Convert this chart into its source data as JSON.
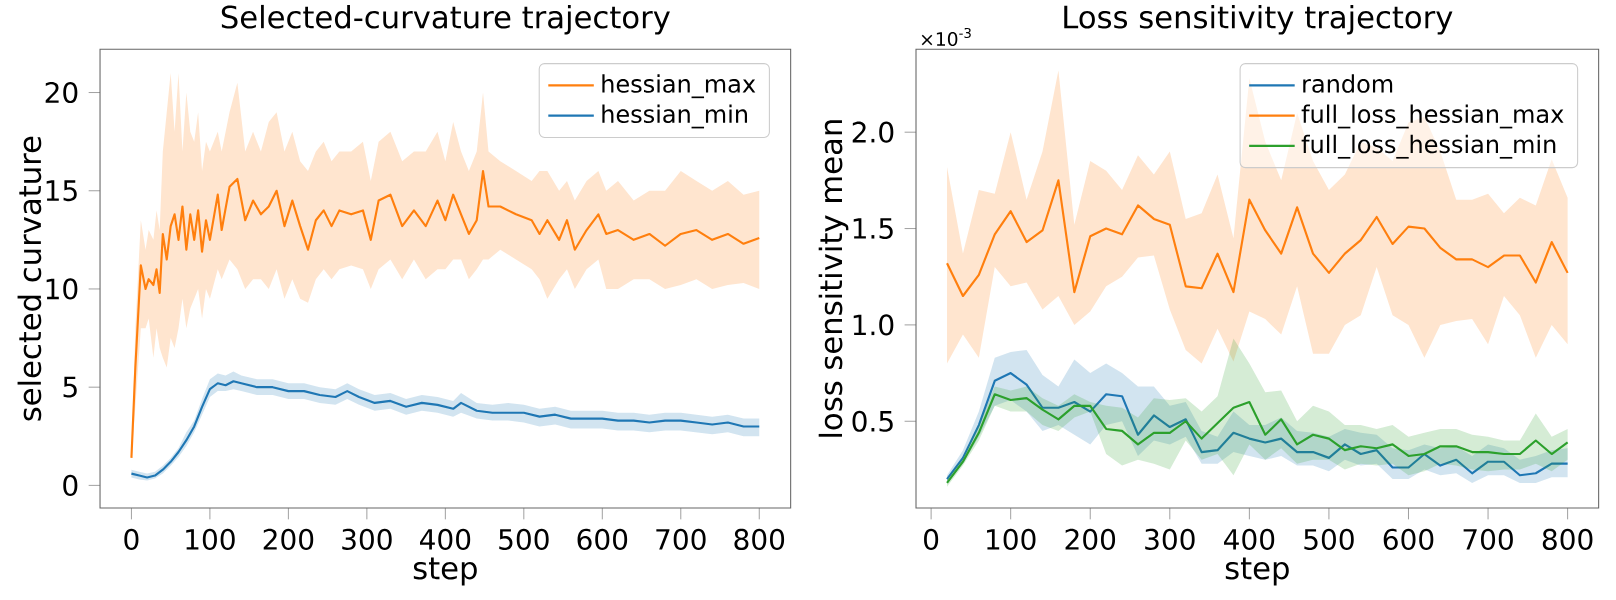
{
  "chart_data": [
    {
      "type": "line",
      "title": "Selected-curvature trajectory",
      "xlabel": "step",
      "ylabel": "selected curvature",
      "xlim": [
        -40,
        840
      ],
      "ylim": [
        -1.15,
        22.2
      ],
      "xticks": [
        0,
        100,
        200,
        300,
        400,
        500,
        600,
        700,
        800
      ],
      "yticks": [
        0,
        5,
        10,
        15,
        20
      ],
      "legend": "top right",
      "grid": false,
      "marker": "none",
      "line_style": "solid",
      "series": [
        {
          "name": "hessian_max",
          "color": "#ff7f0e",
          "x": [
            0,
            5,
            12,
            18,
            22,
            28,
            32,
            36,
            40,
            45,
            50,
            55,
            60,
            65,
            70,
            75,
            80,
            85,
            90,
            95,
            100,
            110,
            115,
            125,
            135,
            145,
            155,
            165,
            175,
            185,
            195,
            205,
            215,
            225,
            235,
            245,
            255,
            265,
            280,
            295,
            305,
            315,
            330,
            345,
            360,
            375,
            390,
            400,
            410,
            420,
            430,
            440,
            448,
            455,
            470,
            490,
            510,
            520,
            530,
            545,
            555,
            565,
            580,
            595,
            605,
            620,
            640,
            660,
            680,
            700,
            720,
            740,
            760,
            780,
            800
          ],
          "values": [
            1.4,
            6,
            11.2,
            10,
            10.5,
            10.2,
            11,
            9.8,
            12.8,
            11.5,
            13.2,
            13.8,
            12.5,
            14.2,
            12,
            13.8,
            12.5,
            14,
            11.9,
            13.5,
            12.5,
            14.8,
            13,
            15.2,
            15.6,
            13.5,
            14.5,
            13.8,
            14.2,
            15,
            13.2,
            14.5,
            13.2,
            12,
            13.5,
            14,
            13.2,
            14,
            13.8,
            14,
            12.5,
            14.5,
            14.8,
            13.2,
            14,
            13.2,
            14.5,
            13.5,
            14.8,
            13.8,
            12.8,
            13.5,
            16,
            14.2,
            14.2,
            13.8,
            13.5,
            12.8,
            13.5,
            12.5,
            13.5,
            12,
            13,
            13.8,
            12.8,
            13,
            12.5,
            12.8,
            12.2,
            12.8,
            13,
            12.5,
            12.8,
            12.3,
            12.6
          ],
          "lower": [
            1.4,
            4,
            8,
            8,
            8.5,
            6.5,
            8,
            7,
            6.5,
            6,
            7.5,
            7,
            8,
            9.5,
            8,
            9,
            9.5,
            10,
            8.5,
            10,
            9.5,
            11,
            10.5,
            11.5,
            11,
            10,
            10.5,
            10.5,
            10,
            11,
            9.5,
            10.5,
            9.5,
            9.3,
            10.5,
            11,
            10.5,
            11,
            11.2,
            11,
            10,
            11,
            11.5,
            10.5,
            11.5,
            10.5,
            11,
            11,
            11.5,
            11.5,
            10.5,
            11,
            11.5,
            11.5,
            12,
            11.5,
            11,
            10.5,
            9.5,
            10.5,
            11,
            10,
            11,
            11.5,
            10,
            10,
            10.5,
            10.5,
            10,
            10.2,
            10.5,
            10,
            10.2,
            10.3,
            10
          ],
          "upper": [
            1.4,
            8,
            13.5,
            12,
            13,
            12.5,
            14,
            13,
            17,
            19,
            21,
            18,
            21,
            17,
            20,
            18,
            17.5,
            19,
            16,
            17.5,
            17,
            18,
            17,
            19,
            20.5,
            17,
            18,
            17,
            18.5,
            19,
            17,
            18,
            16.5,
            16,
            17,
            17.5,
            16.5,
            17,
            17,
            17.5,
            15.5,
            17.5,
            18,
            16.5,
            17,
            17,
            18,
            16.5,
            18.5,
            17,
            16,
            17,
            20,
            17,
            16.5,
            16,
            15.5,
            16,
            16,
            15,
            15.5,
            14.5,
            15.5,
            16,
            15,
            15.5,
            14.5,
            15,
            15,
            16,
            15.5,
            15,
            15.5,
            14.8,
            15
          ]
        },
        {
          "name": "hessian_min",
          "color": "#1f77b4",
          "x": [
            0,
            10,
            20,
            30,
            40,
            50,
            60,
            70,
            80,
            90,
            100,
            110,
            120,
            130,
            140,
            160,
            180,
            200,
            220,
            240,
            260,
            275,
            290,
            310,
            330,
            350,
            370,
            390,
            410,
            420,
            440,
            460,
            480,
            500,
            520,
            540,
            560,
            580,
            600,
            620,
            640,
            660,
            680,
            700,
            720,
            740,
            760,
            780,
            800
          ],
          "values": [
            0.6,
            0.5,
            0.4,
            0.5,
            0.8,
            1.2,
            1.7,
            2.3,
            3.0,
            4.0,
            4.9,
            5.2,
            5.1,
            5.3,
            5.2,
            5.0,
            5.0,
            4.8,
            4.8,
            4.6,
            4.5,
            4.8,
            4.5,
            4.2,
            4.3,
            4.0,
            4.2,
            4.1,
            3.9,
            4.2,
            3.8,
            3.7,
            3.7,
            3.7,
            3.5,
            3.6,
            3.4,
            3.4,
            3.4,
            3.3,
            3.3,
            3.2,
            3.3,
            3.3,
            3.2,
            3.1,
            3.2,
            3.0,
            3.0
          ],
          "lower": [
            0.4,
            0.3,
            0.25,
            0.35,
            0.6,
            1.0,
            1.45,
            2.0,
            2.7,
            3.6,
            4.5,
            4.8,
            4.8,
            4.9,
            4.8,
            4.6,
            4.6,
            4.4,
            4.4,
            4.2,
            4.1,
            4.4,
            4.1,
            3.8,
            3.9,
            3.6,
            3.8,
            3.7,
            3.5,
            3.7,
            3.4,
            3.3,
            3.3,
            3.2,
            3.0,
            3.1,
            2.9,
            2.9,
            2.9,
            2.8,
            2.8,
            2.7,
            2.8,
            2.8,
            2.7,
            2.6,
            2.7,
            2.5,
            2.5
          ],
          "upper": [
            0.8,
            0.7,
            0.6,
            0.7,
            1.0,
            1.4,
            1.9,
            2.7,
            3.3,
            4.4,
            5.4,
            5.7,
            5.6,
            5.8,
            5.6,
            5.4,
            5.4,
            5.2,
            5.2,
            5.0,
            4.9,
            5.2,
            4.9,
            4.6,
            4.7,
            4.4,
            4.6,
            4.5,
            4.3,
            4.7,
            4.2,
            4.1,
            4.2,
            4.1,
            3.9,
            4.0,
            3.8,
            3.8,
            3.8,
            3.7,
            3.7,
            3.6,
            3.7,
            3.7,
            3.6,
            3.5,
            3.6,
            3.4,
            3.4
          ]
        }
      ]
    },
    {
      "type": "line",
      "title": "Loss sensitivity trajectory",
      "xlabel": "step",
      "ylabel": "loss sensitivity mean",
      "annotations": [
        "×10$^{-3}$"
      ],
      "xlim": [
        -19,
        839
      ],
      "ylim": [
        0.05,
        2.43
      ],
      "xticks": [
        0,
        100,
        200,
        300,
        400,
        500,
        600,
        700,
        800
      ],
      "yticks": [
        {
          "value": 0.5,
          "label": "0.5"
        },
        {
          "value": 1.0,
          "label": "1.0"
        },
        {
          "value": 1.5,
          "label": "1.5"
        },
        {
          "value": 2.0,
          "label": "2.0"
        }
      ],
      "legend": "top right",
      "grid": false,
      "marker": "none",
      "line_style": "solid",
      "x": [
        20,
        40,
        60,
        80,
        100,
        120,
        140,
        160,
        180,
        200,
        220,
        240,
        260,
        280,
        300,
        320,
        340,
        360,
        380,
        400,
        420,
        440,
        460,
        480,
        500,
        520,
        540,
        560,
        580,
        600,
        620,
        640,
        660,
        680,
        700,
        720,
        740,
        760,
        780,
        800
      ],
      "series": [
        {
          "name": "random",
          "color": "#1f77b4",
          "values": [
            0.2,
            0.31,
            0.48,
            0.71,
            0.75,
            0.69,
            0.57,
            0.57,
            0.6,
            0.55,
            0.64,
            0.63,
            0.43,
            0.53,
            0.47,
            0.51,
            0.34,
            0.35,
            0.44,
            0.41,
            0.39,
            0.41,
            0.34,
            0.34,
            0.31,
            0.38,
            0.33,
            0.35,
            0.26,
            0.26,
            0.33,
            0.27,
            0.3,
            0.23,
            0.29,
            0.29,
            0.22,
            0.23,
            0.28,
            0.28
          ],
          "lower": [
            0.18,
            0.28,
            0.42,
            0.58,
            0.61,
            0.55,
            0.45,
            0.48,
            0.43,
            0.38,
            0.48,
            0.5,
            0.32,
            0.4,
            0.38,
            0.42,
            0.28,
            0.28,
            0.34,
            0.32,
            0.3,
            0.32,
            0.27,
            0.27,
            0.24,
            0.3,
            0.27,
            0.28,
            0.2,
            0.2,
            0.25,
            0.22,
            0.23,
            0.18,
            0.22,
            0.22,
            0.18,
            0.18,
            0.21,
            0.21
          ],
          "upper": [
            0.22,
            0.35,
            0.55,
            0.83,
            0.86,
            0.87,
            0.74,
            0.68,
            0.82,
            0.75,
            0.8,
            0.75,
            0.68,
            0.68,
            0.58,
            0.6,
            0.45,
            0.42,
            0.55,
            0.48,
            0.48,
            0.52,
            0.45,
            0.44,
            0.42,
            0.46,
            0.44,
            0.43,
            0.36,
            0.35,
            0.38,
            0.36,
            0.37,
            0.32,
            0.38,
            0.36,
            0.3,
            0.32,
            0.35,
            0.36
          ]
        },
        {
          "name": "full_loss_hessian_max",
          "color": "#ff7f0e",
          "values": [
            1.32,
            1.15,
            1.26,
            1.47,
            1.59,
            1.43,
            1.49,
            1.75,
            1.17,
            1.46,
            1.5,
            1.47,
            1.62,
            1.55,
            1.52,
            1.2,
            1.19,
            1.37,
            1.17,
            1.65,
            1.49,
            1.37,
            1.61,
            1.37,
            1.27,
            1.37,
            1.44,
            1.56,
            1.42,
            1.51,
            1.5,
            1.4,
            1.34,
            1.34,
            1.3,
            1.36,
            1.36,
            1.22,
            1.43,
            1.27
          ],
          "lower": [
            0.8,
            0.95,
            0.83,
            1.3,
            1.2,
            1.22,
            1.08,
            1.15,
            1.0,
            1.07,
            1.2,
            1.25,
            1.35,
            1.36,
            1.08,
            0.87,
            0.8,
            0.98,
            0.81,
            1.07,
            1.03,
            0.95,
            1.2,
            0.85,
            0.85,
            1.0,
            1.05,
            1.3,
            1.05,
            1.0,
            0.83,
            1.0,
            1.02,
            1.03,
            0.9,
            1.15,
            1.05,
            0.83,
            1.0,
            0.9
          ],
          "upper": [
            1.82,
            1.37,
            1.7,
            1.68,
            2.0,
            1.65,
            1.9,
            2.32,
            1.52,
            1.85,
            1.8,
            1.7,
            1.88,
            1.78,
            1.9,
            1.55,
            1.58,
            1.78,
            1.45,
            2.28,
            1.95,
            1.75,
            2.1,
            1.85,
            1.7,
            1.78,
            1.95,
            1.92,
            1.85,
            2.05,
            2.08,
            1.9,
            1.65,
            1.65,
            1.68,
            1.58,
            1.66,
            1.62,
            1.86,
            1.66
          ]
        },
        {
          "name": "full_loss_hessian_min",
          "color": "#2ca02c",
          "values": [
            0.18,
            0.29,
            0.44,
            0.64,
            0.61,
            0.62,
            0.56,
            0.51,
            0.58,
            0.58,
            0.46,
            0.45,
            0.38,
            0.44,
            0.44,
            0.5,
            0.41,
            0.49,
            0.57,
            0.6,
            0.43,
            0.51,
            0.38,
            0.43,
            0.41,
            0.35,
            0.37,
            0.36,
            0.38,
            0.32,
            0.33,
            0.37,
            0.37,
            0.34,
            0.34,
            0.33,
            0.33,
            0.4,
            0.33,
            0.39
          ],
          "lower": [
            0.16,
            0.27,
            0.4,
            0.58,
            0.55,
            0.55,
            0.48,
            0.45,
            0.52,
            0.55,
            0.33,
            0.27,
            0.3,
            0.28,
            0.25,
            0.4,
            0.3,
            0.33,
            0.22,
            0.38,
            0.3,
            0.36,
            0.28,
            0.3,
            0.3,
            0.25,
            0.28,
            0.27,
            0.28,
            0.22,
            0.24,
            0.28,
            0.27,
            0.25,
            0.24,
            0.25,
            0.25,
            0.28,
            0.24,
            0.3
          ],
          "upper": [
            0.2,
            0.31,
            0.48,
            0.68,
            0.66,
            0.68,
            0.62,
            0.58,
            0.64,
            0.6,
            0.58,
            0.57,
            0.52,
            0.62,
            0.61,
            0.62,
            0.55,
            0.63,
            0.93,
            0.8,
            0.65,
            0.66,
            0.5,
            0.58,
            0.55,
            0.48,
            0.48,
            0.46,
            0.48,
            0.42,
            0.44,
            0.46,
            0.46,
            0.43,
            0.42,
            0.4,
            0.4,
            0.54,
            0.42,
            0.46
          ]
        }
      ]
    }
  ]
}
